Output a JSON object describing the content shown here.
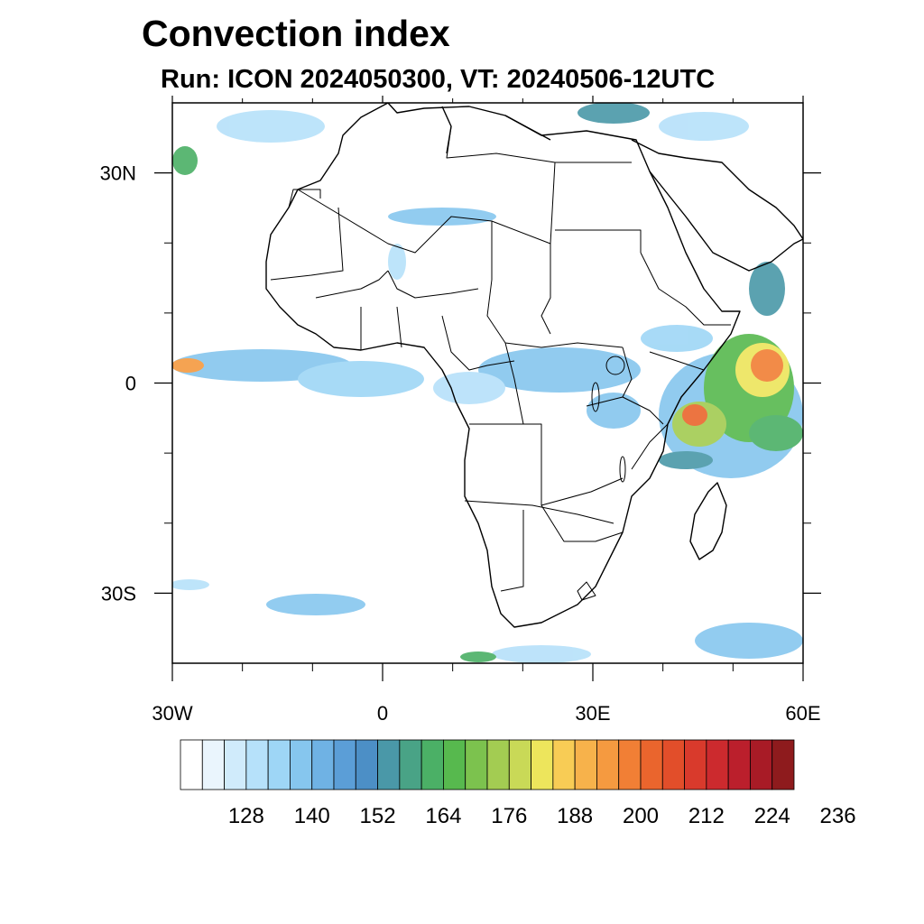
{
  "title": "Convection index",
  "subtitle": "Run: ICON 2024050300,  VT: 20240506-12UTC",
  "map": {
    "lon_range": [
      -30,
      60
    ],
    "lat_range": [
      -40,
      40
    ],
    "lon_tick_labels": [
      {
        "value": -30,
        "label": "30W"
      },
      {
        "value": 0,
        "label": "0"
      },
      {
        "value": 30,
        "label": "30E"
      },
      {
        "value": 60,
        "label": "60E"
      }
    ],
    "lat_tick_labels": [
      {
        "value": 30,
        "label": "30N"
      },
      {
        "value": 0,
        "label": "0"
      },
      {
        "value": -30,
        "label": "30S"
      }
    ],
    "lon_minor_ticks": [
      -20,
      -10,
      10,
      20,
      40,
      50
    ],
    "lat_minor_ticks": [
      20,
      10,
      -10,
      -20
    ]
  },
  "colorbar": {
    "colors": [
      "#ffffff",
      "#eaf5fd",
      "#d0ebfb",
      "#b6e1fa",
      "#9ed6f6",
      "#86c6ee",
      "#6fb2e4",
      "#5b9ed7",
      "#4c8fc6",
      "#4a98a8",
      "#49a386",
      "#4bb066",
      "#57b94e",
      "#7cc24e",
      "#a3cc52",
      "#c9d957",
      "#ede55c",
      "#f8cc55",
      "#f7b24b",
      "#f59a40",
      "#f17f35",
      "#ea652d",
      "#e24e2a",
      "#d93a2c",
      "#cc2a2e",
      "#bb1f2c",
      "#a81b26",
      "#8e1b1d"
    ],
    "labels": [
      "128",
      "140",
      "152",
      "164",
      "176",
      "188",
      "200",
      "212",
      "224",
      "236"
    ],
    "label_every": 3,
    "label_first_boundary": 3
  }
}
